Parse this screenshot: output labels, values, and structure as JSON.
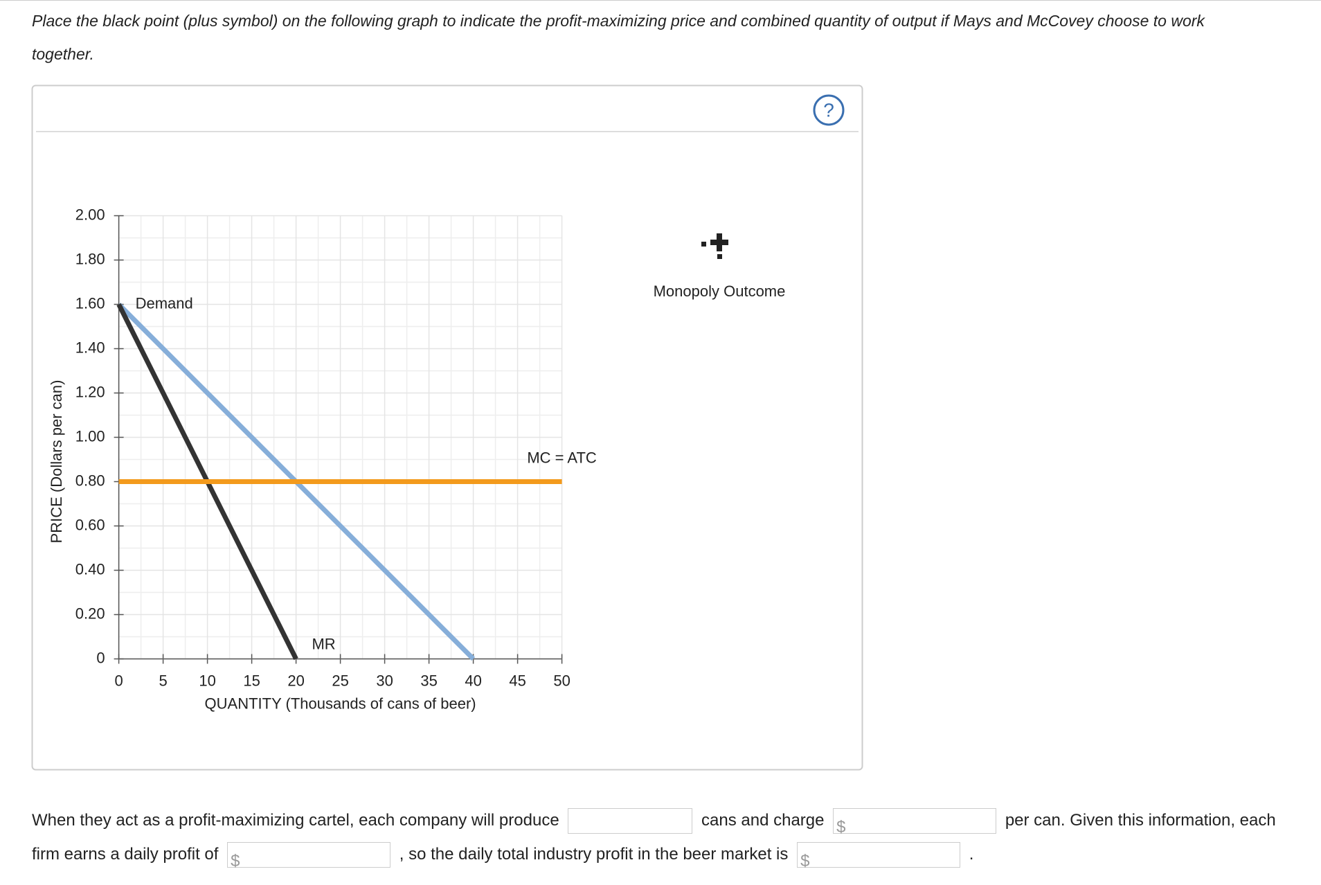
{
  "instruction": "Place the black point (plus symbol) on the following graph to indicate the profit-maximizing price and combined quantity of output if Mays and McCovey choose to work together.",
  "help": "?",
  "palette": {
    "label": "Monopoly Outcome"
  },
  "chart_data": {
    "type": "line",
    "x_label": "QUANTITY (Thousands of cans of beer)",
    "y_label": "PRICE (Dollars per can)",
    "xlim": [
      0,
      50
    ],
    "xticks": [
      0,
      5,
      10,
      15,
      20,
      25,
      30,
      35,
      40,
      45,
      50
    ],
    "ylim": [
      0,
      2
    ],
    "yticks": [
      0,
      {
        "value": 0.2,
        "label": "0.20"
      },
      {
        "value": 0.4,
        "label": "0.40"
      },
      {
        "value": 0.6,
        "label": "0.60"
      },
      {
        "value": 0.8,
        "label": "0.80"
      },
      {
        "value": 1,
        "label": "1.00"
      },
      {
        "value": 1.2,
        "label": "1.20"
      },
      {
        "value": 1.4,
        "label": "1.40"
      },
      {
        "value": 1.6,
        "label": "1.60"
      },
      {
        "value": 1.8,
        "label": "1.80"
      },
      {
        "value": 2,
        "label": "2.00"
      }
    ],
    "grid": true,
    "series": [
      {
        "name": "Demand",
        "color": "#86aed9",
        "x": [
          0,
          40
        ],
        "values": [
          1.6,
          0
        ]
      },
      {
        "name": "MR",
        "color": "#333333",
        "x": [
          0,
          20
        ],
        "values": [
          1.6,
          0
        ]
      },
      {
        "name": "MC = ATC",
        "color": "#f39a1c",
        "x": [
          0,
          50
        ],
        "values": [
          0.8,
          0.8
        ]
      }
    ]
  },
  "question": {
    "parts": [
      "When they act as a profit-maximizing cartel, each company will produce",
      "cans and charge",
      "per can. Given this information, each firm earns a daily profit of",
      ", so the daily total industry profit in the beer market is",
      "."
    ],
    "currency": "$"
  }
}
